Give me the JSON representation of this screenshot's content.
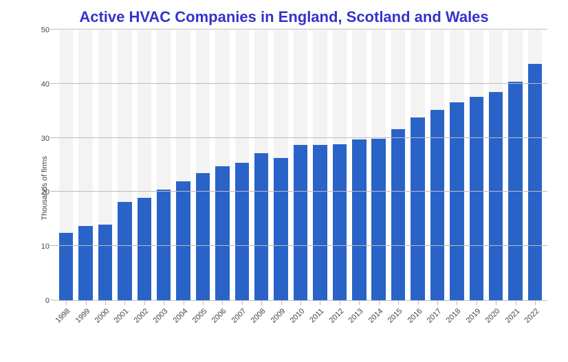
{
  "chart": {
    "type": "bar",
    "title": "Active HVAC Companies in England, Scotland and Wales",
    "title_color": "#3333cc",
    "title_fontsize": 22,
    "ylabel": "Thousands of firms",
    "ylabel_fontsize": 11,
    "xlabel_fontsize": 11,
    "tick_color": "#444444",
    "bar_color": "#2a63c8",
    "bar_bg_color": "#f3f3f3",
    "grid_color": "#bbbbbb",
    "background_color": "#ffffff",
    "bar_width": 0.72,
    "ylim": [
      0,
      50
    ],
    "yticks": [
      0,
      10,
      20,
      30,
      40,
      50
    ],
    "categories": [
      "1998",
      "1999",
      "2000",
      "2001",
      "2002",
      "2003",
      "2004",
      "2005",
      "2006",
      "2007",
      "2008",
      "2009",
      "2010",
      "2011",
      "2012",
      "2013",
      "2014",
      "2015",
      "2016",
      "2017",
      "2018",
      "2019",
      "2020",
      "2021",
      "2022"
    ],
    "values": [
      12.5,
      13.7,
      14.0,
      18.2,
      19.0,
      20.5,
      22.0,
      23.5,
      24.8,
      25.5,
      27.2,
      26.3,
      28.7,
      28.8,
      28.9,
      29.8,
      29.9,
      31.7,
      33.8,
      35.2,
      36.6,
      37.7,
      38.5,
      40.5,
      43.8
    ]
  }
}
